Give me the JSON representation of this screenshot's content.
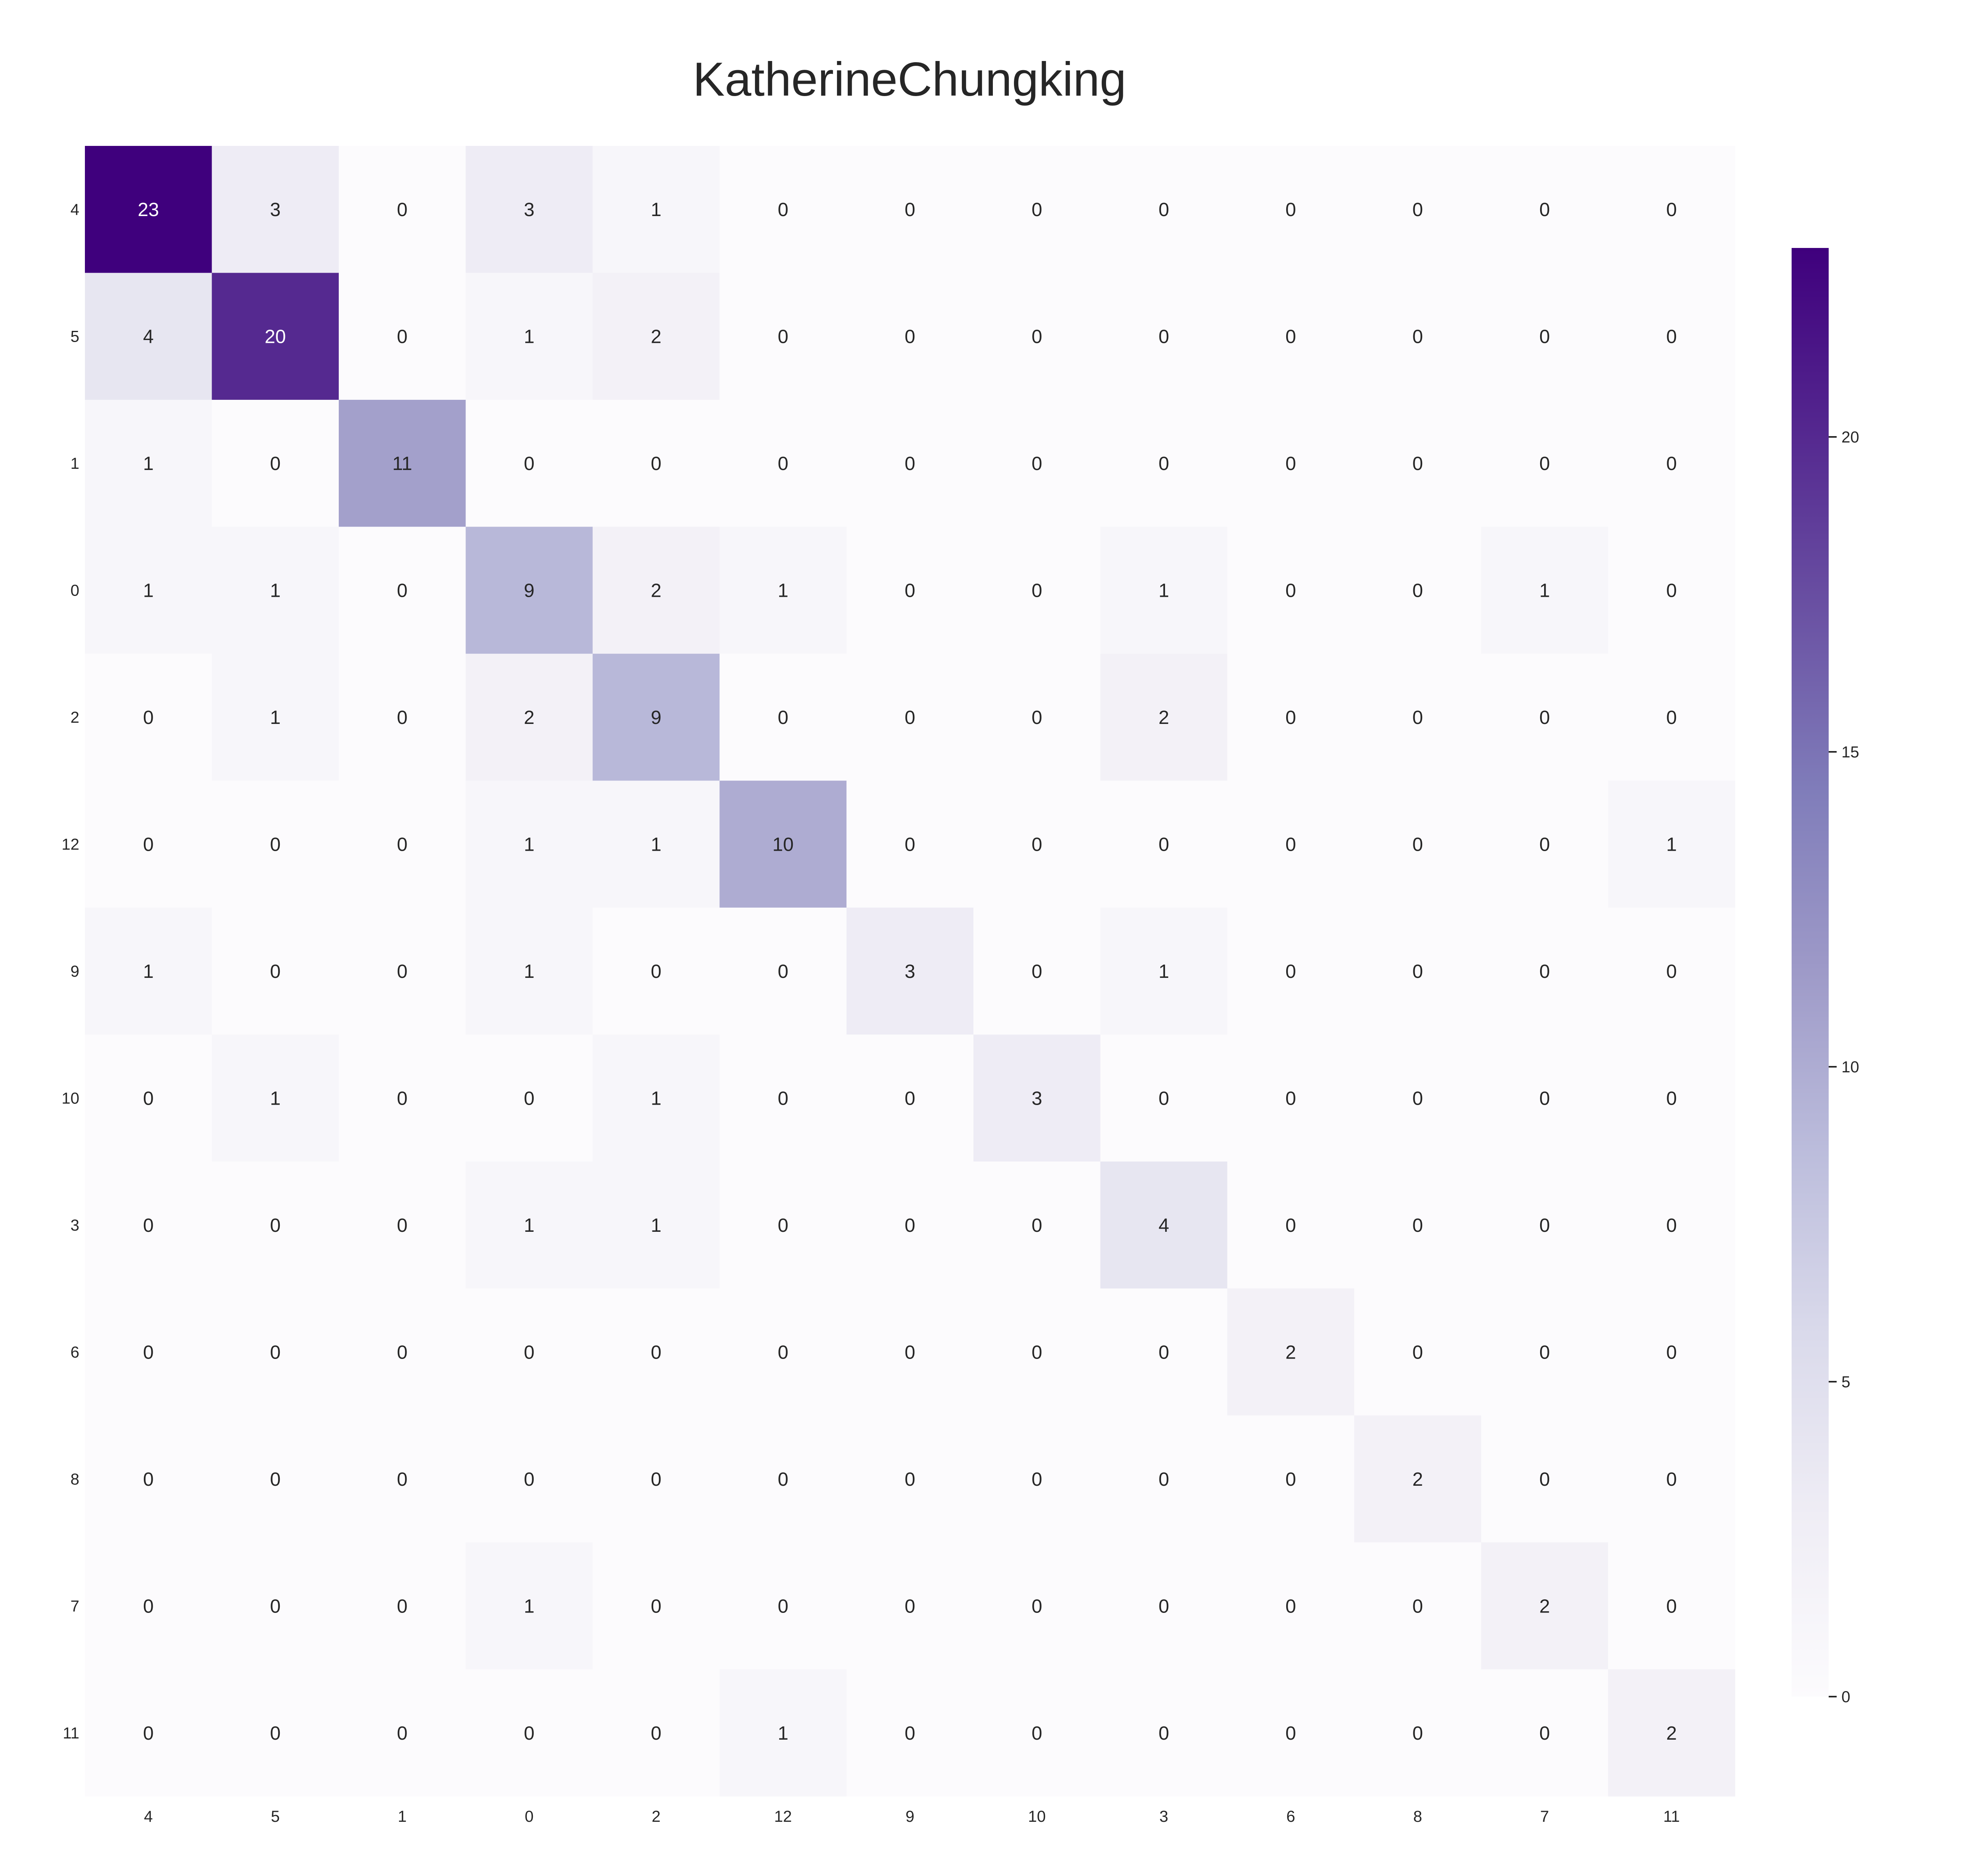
{
  "chart_data": {
    "type": "heatmap",
    "title": "KatherineChungking",
    "x_labels": [
      "4",
      "5",
      "1",
      "0",
      "2",
      "12",
      "9",
      "10",
      "3",
      "6",
      "8",
      "7",
      "11"
    ],
    "y_labels": [
      "4",
      "5",
      "1",
      "0",
      "2",
      "12",
      "9",
      "10",
      "3",
      "6",
      "8",
      "7",
      "11"
    ],
    "matrix": [
      [
        23,
        3,
        0,
        3,
        1,
        0,
        0,
        0,
        0,
        0,
        0,
        0,
        0
      ],
      [
        4,
        20,
        0,
        1,
        2,
        0,
        0,
        0,
        0,
        0,
        0,
        0,
        0
      ],
      [
        1,
        0,
        11,
        0,
        0,
        0,
        0,
        0,
        0,
        0,
        0,
        0,
        0
      ],
      [
        1,
        1,
        0,
        9,
        2,
        1,
        0,
        0,
        1,
        0,
        0,
        1,
        0
      ],
      [
        0,
        1,
        0,
        2,
        9,
        0,
        0,
        0,
        2,
        0,
        0,
        0,
        0
      ],
      [
        0,
        0,
        0,
        1,
        1,
        10,
        0,
        0,
        0,
        0,
        0,
        0,
        1
      ],
      [
        1,
        0,
        0,
        1,
        0,
        0,
        3,
        0,
        1,
        0,
        0,
        0,
        0
      ],
      [
        0,
        1,
        0,
        0,
        1,
        0,
        0,
        3,
        0,
        0,
        0,
        0,
        0
      ],
      [
        0,
        0,
        0,
        1,
        1,
        0,
        0,
        0,
        4,
        0,
        0,
        0,
        0
      ],
      [
        0,
        0,
        0,
        0,
        0,
        0,
        0,
        0,
        0,
        2,
        0,
        0,
        0
      ],
      [
        0,
        0,
        0,
        0,
        0,
        0,
        0,
        0,
        0,
        0,
        2,
        0,
        0
      ],
      [
        0,
        0,
        0,
        1,
        0,
        0,
        0,
        0,
        0,
        0,
        0,
        2,
        0
      ],
      [
        0,
        0,
        0,
        0,
        0,
        1,
        0,
        0,
        0,
        0,
        0,
        0,
        2
      ]
    ],
    "value_range": [
      0,
      23
    ],
    "colorbar_ticks": [
      0,
      5,
      10,
      15,
      20
    ],
    "colormap": "Purples",
    "colors": {
      "low": "#fcfbfd",
      "high": "#3f007d",
      "text_dark": "#262626",
      "text_light": "#ffffff"
    },
    "grid": false,
    "legend": "colorbar-right"
  }
}
